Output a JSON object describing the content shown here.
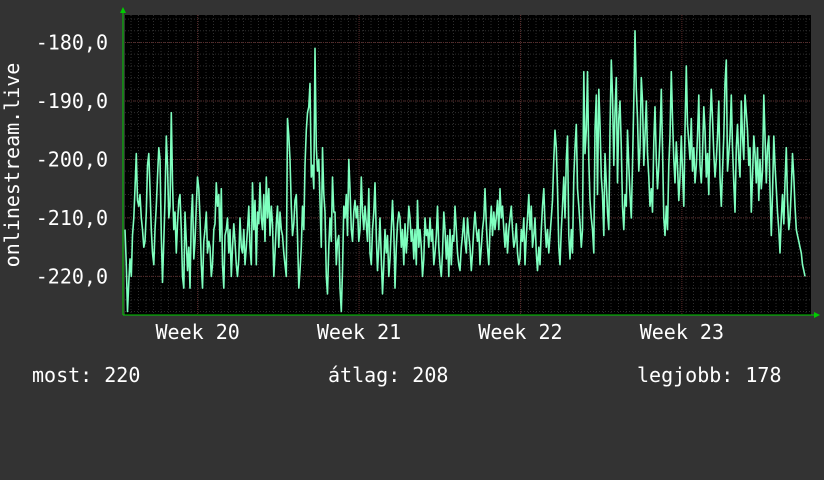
{
  "colors": {
    "background": "#333333",
    "plot_background": "#000000",
    "grid_minor": "#2e2e2e",
    "grid_major": "#5a2a2a",
    "line": "#7fffbf",
    "axis": "#00cc00",
    "text": "#ffffff"
  },
  "chart_data": {
    "type": "line",
    "title": "",
    "xlabel": "",
    "ylabel": "onlinestream.live",
    "ylim": [
      -226.6,
      -175.3
    ],
    "y_ticks": [
      -180,
      -190,
      -200,
      -210,
      -220
    ],
    "y_tick_labels": [
      "-180,0",
      "-190,0",
      "-200,0",
      "-210,0",
      "-220,0"
    ],
    "x_ticks": [
      {
        "label": "Week 20",
        "x": 20.4
      },
      {
        "label": "Week 21",
        "x": 21.4
      },
      {
        "label": "Week 22",
        "x": 22.4
      },
      {
        "label": "Week 23",
        "x": 23.4
      }
    ],
    "xlim": [
      19.95,
      24.2
    ],
    "grid": true,
    "legend": "none",
    "series": [
      {
        "values": [
          -212,
          -218,
          -226,
          -221,
          -217,
          -220,
          -213,
          -210,
          -205,
          -199,
          -207,
          -208,
          -206,
          -210,
          -212,
          -215,
          -214,
          -209,
          -201,
          -199,
          -205,
          -212,
          -216,
          -218,
          -212,
          -208,
          -203,
          -198,
          -200,
          -213,
          -221,
          -214,
          -207,
          -196,
          -201,
          -210,
          -208,
          -192,
          -204,
          -212,
          -209,
          -216,
          -211,
          -207,
          -206,
          -212,
          -220,
          -222,
          -209,
          -214,
          -219,
          -215,
          -222,
          -210,
          -206,
          -217,
          -214,
          -208,
          -203,
          -205,
          -210,
          -218,
          -222,
          -214,
          -212,
          -209,
          -216,
          -214,
          -215,
          -220,
          -218,
          -212,
          -211,
          -204,
          -208,
          -206,
          -214,
          -205,
          -218,
          -222,
          -213,
          -212,
          -210,
          -216,
          -212,
          -220,
          -215,
          -211,
          -214,
          -218,
          -220,
          -217,
          -210,
          -215,
          -216,
          -212,
          -218,
          -215,
          -212,
          -208,
          -215,
          -218,
          -204,
          -212,
          -207,
          -218,
          -209,
          -211,
          -204,
          -210,
          -212,
          -206,
          -214,
          -203,
          -210,
          -205,
          -213,
          -208,
          -211,
          -220,
          -216,
          -211,
          -208,
          -215,
          -209,
          -212,
          -213,
          -216,
          -218,
          -220,
          -193,
          -196,
          -200,
          -208,
          -213,
          -211,
          -207,
          -206,
          -213,
          -222,
          -219,
          -215,
          -208,
          -212,
          -201,
          -195,
          -192,
          -191,
          -187,
          -203,
          -201,
          -205,
          -181,
          -198,
          -202,
          -200,
          -207,
          -215,
          -198,
          -206,
          -209,
          -220,
          -223,
          -215,
          -210,
          -214,
          -203,
          -209,
          -209,
          -218,
          -214,
          -213,
          -222,
          -226,
          -219,
          -208,
          -210,
          -206,
          -213,
          -200,
          -205,
          -212,
          -214,
          -209,
          -207,
          -210,
          -208,
          -214,
          -212,
          -203,
          -209,
          -212,
          -208,
          -211,
          -214,
          -205,
          -216,
          -218,
          -212,
          -209,
          -204,
          -213,
          -219,
          -215,
          -210,
          -217,
          -223,
          -218,
          -212,
          -216,
          -213,
          -220,
          -217,
          -212,
          -207,
          -212,
          -222,
          -215,
          -211,
          -209,
          -210,
          -215,
          -212,
          -218,
          -211,
          -216,
          -213,
          -208,
          -210,
          -214,
          -212,
          -217,
          -212,
          -218,
          -207,
          -215,
          -212,
          -215,
          -220,
          -217,
          -210,
          -213,
          -212,
          -215,
          -210,
          -214,
          -212,
          -218,
          -216,
          -213,
          -208,
          -215,
          -218,
          -220,
          -216,
          -209,
          -212,
          -217,
          -213,
          -220,
          -212,
          -218,
          -213,
          -214,
          -208,
          -212,
          -216,
          -218,
          -219,
          -215,
          -213,
          -210,
          -214,
          -216,
          -210,
          -213,
          -215,
          -219,
          -216,
          -212,
          -209,
          -212,
          -214,
          -212,
          -218,
          -215,
          -212,
          -210,
          -205,
          -211,
          -215,
          -218,
          -212,
          -208,
          -213,
          -209,
          -212,
          -210,
          -207,
          -212,
          -205,
          -210,
          -208,
          -212,
          -215,
          -211,
          -216,
          -212,
          -210,
          -208,
          -212,
          -215,
          -214,
          -211,
          -216,
          -218,
          -217,
          -212,
          -214,
          -210,
          -218,
          -213,
          -210,
          -206,
          -212,
          -208,
          -215,
          -213,
          -210,
          -216,
          -219,
          -215,
          -218,
          -212,
          -208,
          -205,
          -211,
          -215,
          -212,
          -216,
          -213,
          -210,
          -207,
          -200,
          -195,
          -198,
          -205,
          -215,
          -218,
          -212,
          -208,
          -203,
          -210,
          -200,
          -196,
          -213,
          -217,
          -212,
          -216,
          -203,
          -198,
          -194,
          -205,
          -208,
          -211,
          -215,
          -212,
          -185,
          -199,
          -195,
          -185,
          -200,
          -207,
          -210,
          -212,
          -216,
          -195,
          -189,
          -206,
          -188,
          -194,
          -203,
          -206,
          -213,
          -199,
          -204,
          -209,
          -212,
          -195,
          -183,
          -189,
          -201,
          -192,
          -186,
          -204,
          -193,
          -190,
          -198,
          -208,
          -212,
          -206,
          -208,
          -195,
          -201,
          -206,
          -210,
          -201,
          -190,
          -178,
          -188,
          -193,
          -202,
          -198,
          -186,
          -190,
          -201,
          -196,
          -190,
          -199,
          -203,
          -208,
          -205,
          -209,
          -197,
          -191,
          -200,
          -205,
          -201,
          -196,
          -188,
          -198,
          -210,
          -213,
          -208,
          -212,
          -201,
          -196,
          -185,
          -193,
          -200,
          -204,
          -197,
          -201,
          -207,
          -203,
          -196,
          -202,
          -208,
          -195,
          -184,
          -194,
          -197,
          -200,
          -193,
          -202,
          -198,
          -204,
          -201,
          -196,
          -189,
          -201,
          -204,
          -199,
          -191,
          -195,
          -203,
          -199,
          -206,
          -194,
          -188,
          -193,
          -199,
          -203,
          -200,
          -196,
          -190,
          -203,
          -208,
          -202,
          -196,
          -187,
          -183,
          -202,
          -199,
          -196,
          -189,
          -198,
          -204,
          -209,
          -198,
          -194,
          -200,
          -203,
          -190,
          -196,
          -200,
          -189,
          -192,
          -195,
          -201,
          -198,
          -209,
          -203,
          -196,
          -199,
          -204,
          -198,
          -207,
          -200,
          -205,
          -202,
          -189,
          -196,
          -204,
          -198,
          -196,
          -205,
          -213,
          -206,
          -196,
          -201,
          -205,
          -209,
          -212,
          -216,
          -210,
          -206,
          -211,
          -204,
          -198,
          -207,
          -212,
          -210,
          -205,
          -199,
          -203,
          -208,
          -212,
          -213,
          -214,
          -215,
          -216,
          -218,
          -219,
          -220
        ]
      }
    ]
  },
  "footer": {
    "current": "most: 220",
    "average": "átlag: 208",
    "best": "legjobb: 178"
  }
}
